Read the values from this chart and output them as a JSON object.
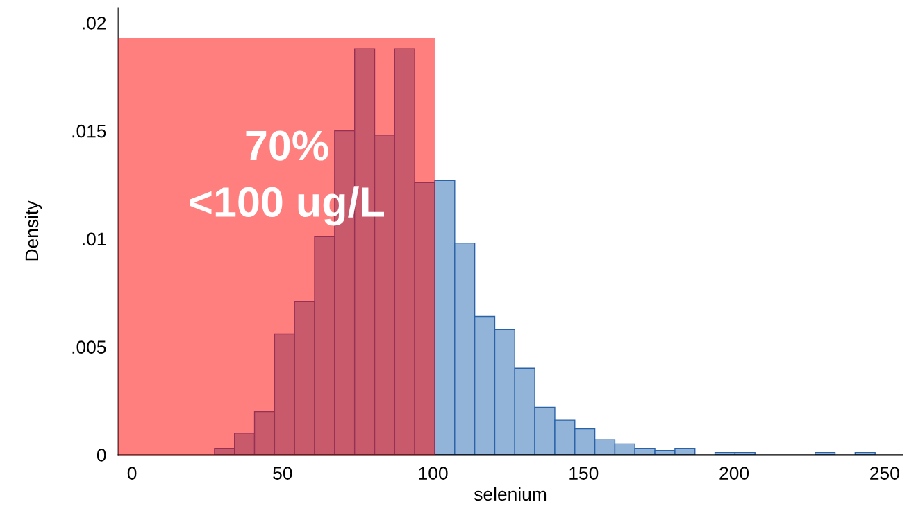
{
  "chart_data": {
    "type": "histogram",
    "xlabel": "selenium",
    "ylabel": "Density",
    "bins": [
      27.4,
      34.05,
      40.7,
      47.35,
      54.0,
      60.65,
      67.3,
      73.95,
      80.6,
      87.25,
      93.9,
      100.55,
      107.2,
      113.85,
      120.5,
      127.15,
      133.8,
      140.45,
      147.1,
      153.75,
      160.4,
      167.05,
      173.7,
      180.35,
      187.0,
      193.65,
      200.3,
      206.95,
      213.6,
      220.25,
      226.9,
      233.55,
      240.2,
      246.85
    ],
    "values": [
      0.0003,
      0.001,
      0.002,
      0.0056,
      0.0071,
      0.0101,
      0.015,
      0.0188,
      0.0148,
      0.0188,
      0.0126,
      0.0127,
      0.0098,
      0.0064,
      0.0058,
      0.004,
      0.0022,
      0.0016,
      0.0012,
      0.0007,
      0.0005,
      0.0003,
      0.0002,
      0.0003,
      null,
      0.0001,
      0.0001,
      null,
      null,
      null,
      0.0001,
      null,
      0.0001
    ],
    "color": "#92b4d8",
    "xlim": [
      -4.6,
      256
    ],
    "xticks": [
      0,
      50,
      100,
      150,
      200,
      250
    ],
    "ylim": [
      0,
      0.0207
    ],
    "yticks": [
      {
        "value": 0,
        "label": "0"
      },
      {
        "value": 0.005,
        "label": ".005"
      },
      {
        "value": 0.01,
        "label": ".01"
      },
      {
        "value": 0.015,
        "label": ".015"
      },
      {
        "value": 0.02,
        "label": ".02"
      }
    ],
    "bands": [
      {
        "axis": "x",
        "from": -4.6,
        "to": 100.55,
        "color": "#ff0000"
      }
    ],
    "annotations": [
      "70%\n<100 ug/L"
    ],
    "grid": false,
    "legend": false
  }
}
